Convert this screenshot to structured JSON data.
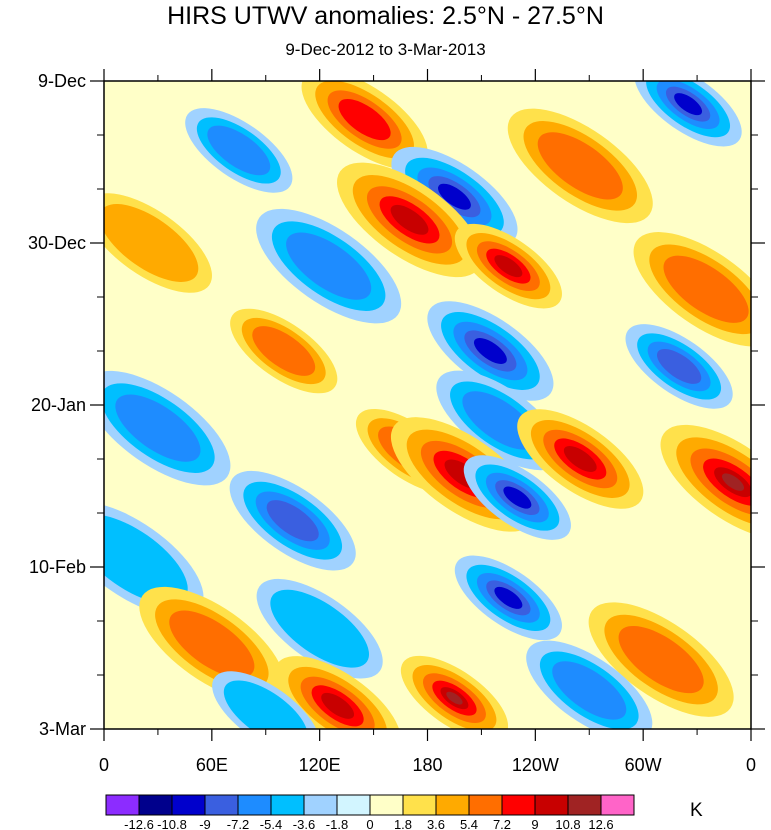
{
  "chart_data": {
    "type": "heatmap",
    "title": "HIRS UTWV anomalies: 2.5°N - 27.5°N",
    "subtitle": "9-Dec-2012 to 3-Mar-2013",
    "x_tick_labels": [
      "0",
      "60E",
      "120E",
      "180",
      "120W",
      "60W",
      "0"
    ],
    "x_tick_longitudes": [
      0,
      60,
      120,
      180,
      240,
      300,
      360
    ],
    "xlim": [
      0,
      360
    ],
    "y_tick_labels": [
      "9-Dec",
      "30-Dec",
      "20-Jan",
      "10-Feb",
      "3-Mar"
    ],
    "y_tick_dates": [
      "2012-12-09",
      "2012-12-30",
      "2013-01-20",
      "2013-02-10",
      "2013-03-03"
    ],
    "ylim": [
      "2012-12-09",
      "2013-03-03"
    ],
    "colorbar": {
      "levels": [
        -12.6,
        -10.8,
        -9,
        -7.2,
        -5.4,
        -3.6,
        -1.8,
        0,
        1.8,
        3.6,
        5.4,
        7.2,
        9,
        10.8,
        12.6
      ],
      "level_labels": [
        "-12.6",
        "-10.8",
        "-9",
        "-7.2",
        "-5.4",
        "-3.6",
        "-1.8",
        "0",
        "1.8",
        "3.6",
        "5.4",
        "7.2",
        "9",
        "10.8",
        "12.6"
      ],
      "colors": [
        "#8c2cff",
        "#00008c",
        "#0000cc",
        "#3a5fe0",
        "#1e8cff",
        "#00bfff",
        "#a0d2ff",
        "#d2f5ff",
        "#ffffc8",
        "#ffe14b",
        "#ffaa00",
        "#ff6e00",
        "#ff0000",
        "#c80000",
        "#a02323",
        "#ff64c8"
      ],
      "unit": "K"
    },
    "features": [
      {
        "lon": 75,
        "date": "2012-12-18",
        "value": -6
      },
      {
        "lon": 145,
        "date": "2012-12-14",
        "value": 8
      },
      {
        "lon": 265,
        "date": "2012-12-20",
        "value": 6
      },
      {
        "lon": 325,
        "date": "2012-12-12",
        "value": -9
      },
      {
        "lon": 195,
        "date": "2012-12-24",
        "value": -10
      },
      {
        "lon": 170,
        "date": "2012-12-27",
        "value": 10
      },
      {
        "lon": 225,
        "date": "2013-01-02",
        "value": 10
      },
      {
        "lon": 25,
        "date": "2012-12-30",
        "value": 5
      },
      {
        "lon": 125,
        "date": "2013-01-02",
        "value": -6
      },
      {
        "lon": 100,
        "date": "2013-01-13",
        "value": 7
      },
      {
        "lon": 215,
        "date": "2013-01-13",
        "value": -9
      },
      {
        "lon": 30,
        "date": "2013-01-23",
        "value": -6
      },
      {
        "lon": 170,
        "date": "2013-01-26",
        "value": 7
      },
      {
        "lon": 220,
        "date": "2013-01-22",
        "value": -7
      },
      {
        "lon": 200,
        "date": "2013-01-29",
        "value": 10
      },
      {
        "lon": 230,
        "date": "2013-02-01",
        "value": -10
      },
      {
        "lon": 265,
        "date": "2013-01-27",
        "value": 9
      },
      {
        "lon": 350,
        "date": "2013-01-30",
        "value": 12
      },
      {
        "lon": 320,
        "date": "2013-01-15",
        "value": -8
      },
      {
        "lon": 105,
        "date": "2013-02-04",
        "value": -8
      },
      {
        "lon": 15,
        "date": "2013-02-09",
        "value": -5
      },
      {
        "lon": 225,
        "date": "2013-02-14",
        "value": -9
      },
      {
        "lon": 120,
        "date": "2013-02-18",
        "value": -5
      },
      {
        "lon": 60,
        "date": "2013-02-20",
        "value": 6
      },
      {
        "lon": 195,
        "date": "2013-02-27",
        "value": 11
      },
      {
        "lon": 130,
        "date": "2013-02-28",
        "value": 9
      },
      {
        "lon": 310,
        "date": "2013-02-22",
        "value": 6
      },
      {
        "lon": 90,
        "date": "2013-03-01",
        "value": -4
      },
      {
        "lon": 270,
        "date": "2013-02-26",
        "value": -6
      },
      {
        "lon": 335,
        "date": "2013-01-05",
        "value": 6
      }
    ]
  }
}
